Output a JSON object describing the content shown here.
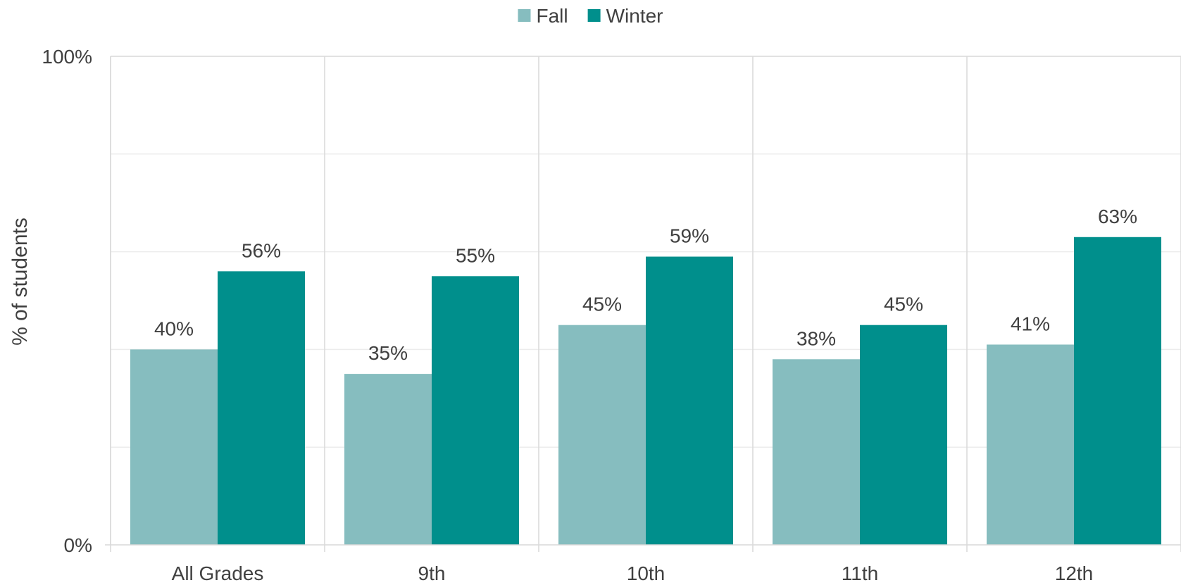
{
  "chart_data": {
    "type": "bar",
    "categories": [
      "All Grades",
      "9th",
      "10th",
      "11th",
      "12th"
    ],
    "series": [
      {
        "name": "Fall",
        "values": [
          40,
          35,
          45,
          38,
          41
        ],
        "labels": [
          "40%",
          "35%",
          "45%",
          "38%",
          "41%"
        ],
        "color": "#86bdbf"
      },
      {
        "name": "Winter",
        "values": [
          56,
          55,
          59,
          45,
          63
        ],
        "labels": [
          "56%",
          "55%",
          "59%",
          "45%",
          "63%"
        ],
        "color": "#008f8c"
      }
    ],
    "ylabel": "% of students",
    "ylim": [
      0,
      100
    ],
    "y_ticks": [
      {
        "value": 0,
        "label": "0%"
      },
      {
        "value": 100,
        "label": "100%"
      }
    ],
    "gridlines": [
      20,
      40,
      60,
      80,
      100
    ],
    "legend_position": "top-center",
    "grid": true
  }
}
